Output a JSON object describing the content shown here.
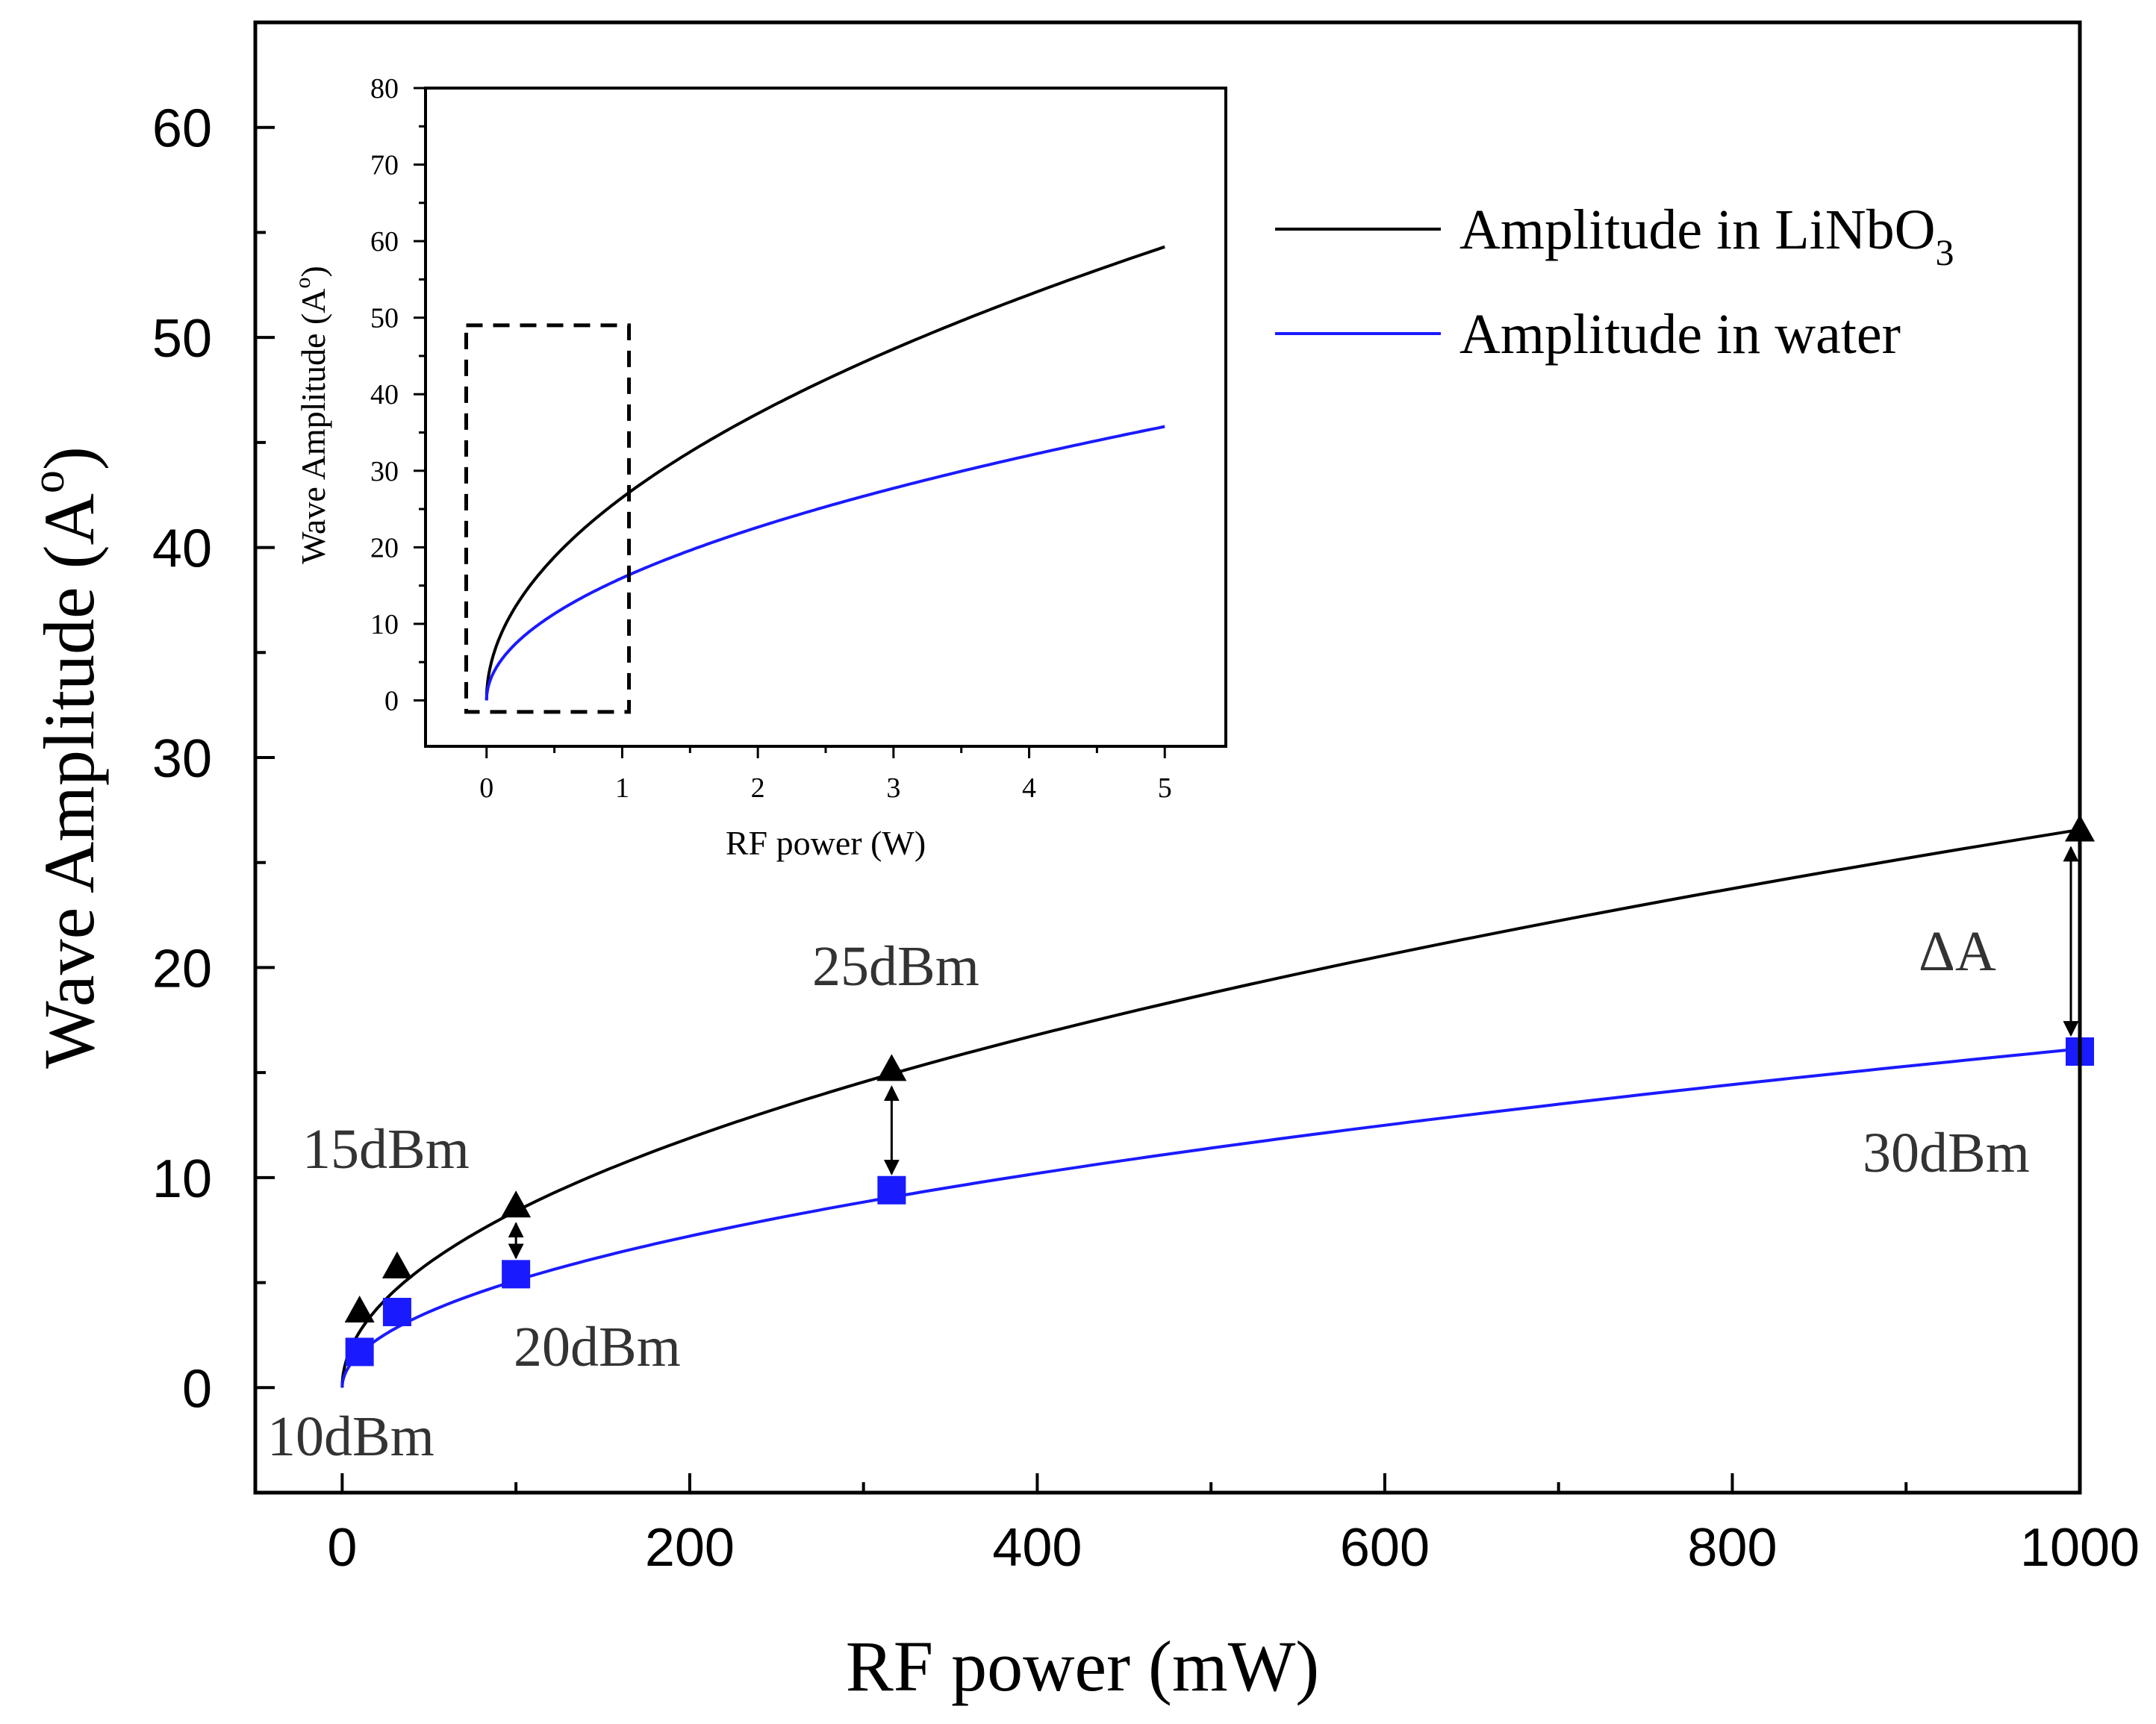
{
  "chart_data": {
    "main": {
      "type": "line",
      "xlabel": "RF power (mW)",
      "ylabel": "Wave Amplitude (A",
      "ylabel_superscript": "o",
      "ylabel_close": ")",
      "xlim": [
        -50,
        1000
      ],
      "ylim": [
        -5,
        65
      ],
      "xticks": [
        0,
        200,
        400,
        600,
        800,
        1000
      ],
      "yticks": [
        0,
        10,
        20,
        30,
        40,
        50,
        60
      ],
      "series": [
        {
          "name": "Amplitude in LiNbO",
          "name_subscript": "3",
          "color": "#000000",
          "marker": "triangle",
          "curve_coeff": 0.84,
          "x": [
            10,
            31.6,
            100,
            316.2,
            1000
          ],
          "y": [
            3.6,
            5.7,
            8.6,
            15.1,
            26.5
          ]
        },
        {
          "name": "Amplitude in water",
          "color": "#1a1aff",
          "marker": "square",
          "curve_coeff": 0.51,
          "x": [
            10,
            31.6,
            100,
            316.2,
            1000
          ],
          "y": [
            1.7,
            3.6,
            5.4,
            9.4,
            16.0
          ]
        }
      ],
      "annotations": [
        {
          "text": "10dBm"
        },
        {
          "text": "15dBm"
        },
        {
          "text": "20dBm"
        },
        {
          "text": "25dBm"
        },
        {
          "text": "30dBm"
        },
        {
          "text": "ΔA"
        }
      ],
      "delta_arrows_at_x": [
        100,
        316.2,
        1000
      ]
    },
    "inset": {
      "type": "line",
      "xlabel": "RF power (W)",
      "ylabel": "Wave Amplitude (A",
      "ylabel_superscript": "o",
      "ylabel_close": ")",
      "xlim": [
        -0.45,
        5.45
      ],
      "ylim": [
        -6,
        80
      ],
      "xticks": [
        0,
        1,
        2,
        3,
        4,
        5
      ],
      "yticks": [
        0,
        10,
        20,
        30,
        40,
        50,
        60,
        70,
        80
      ],
      "series": [
        {
          "name": "Amplitude in LiNbO3",
          "color": "#000000",
          "curve_coeff": 26.5
        },
        {
          "name": "Amplitude in water",
          "color": "#1a1aff",
          "curve_coeff": 16.0
        }
      ],
      "zoom_box": {
        "x0": -0.15,
        "x1": 1.05,
        "y0": -1.5,
        "y1": 49
      }
    }
  }
}
